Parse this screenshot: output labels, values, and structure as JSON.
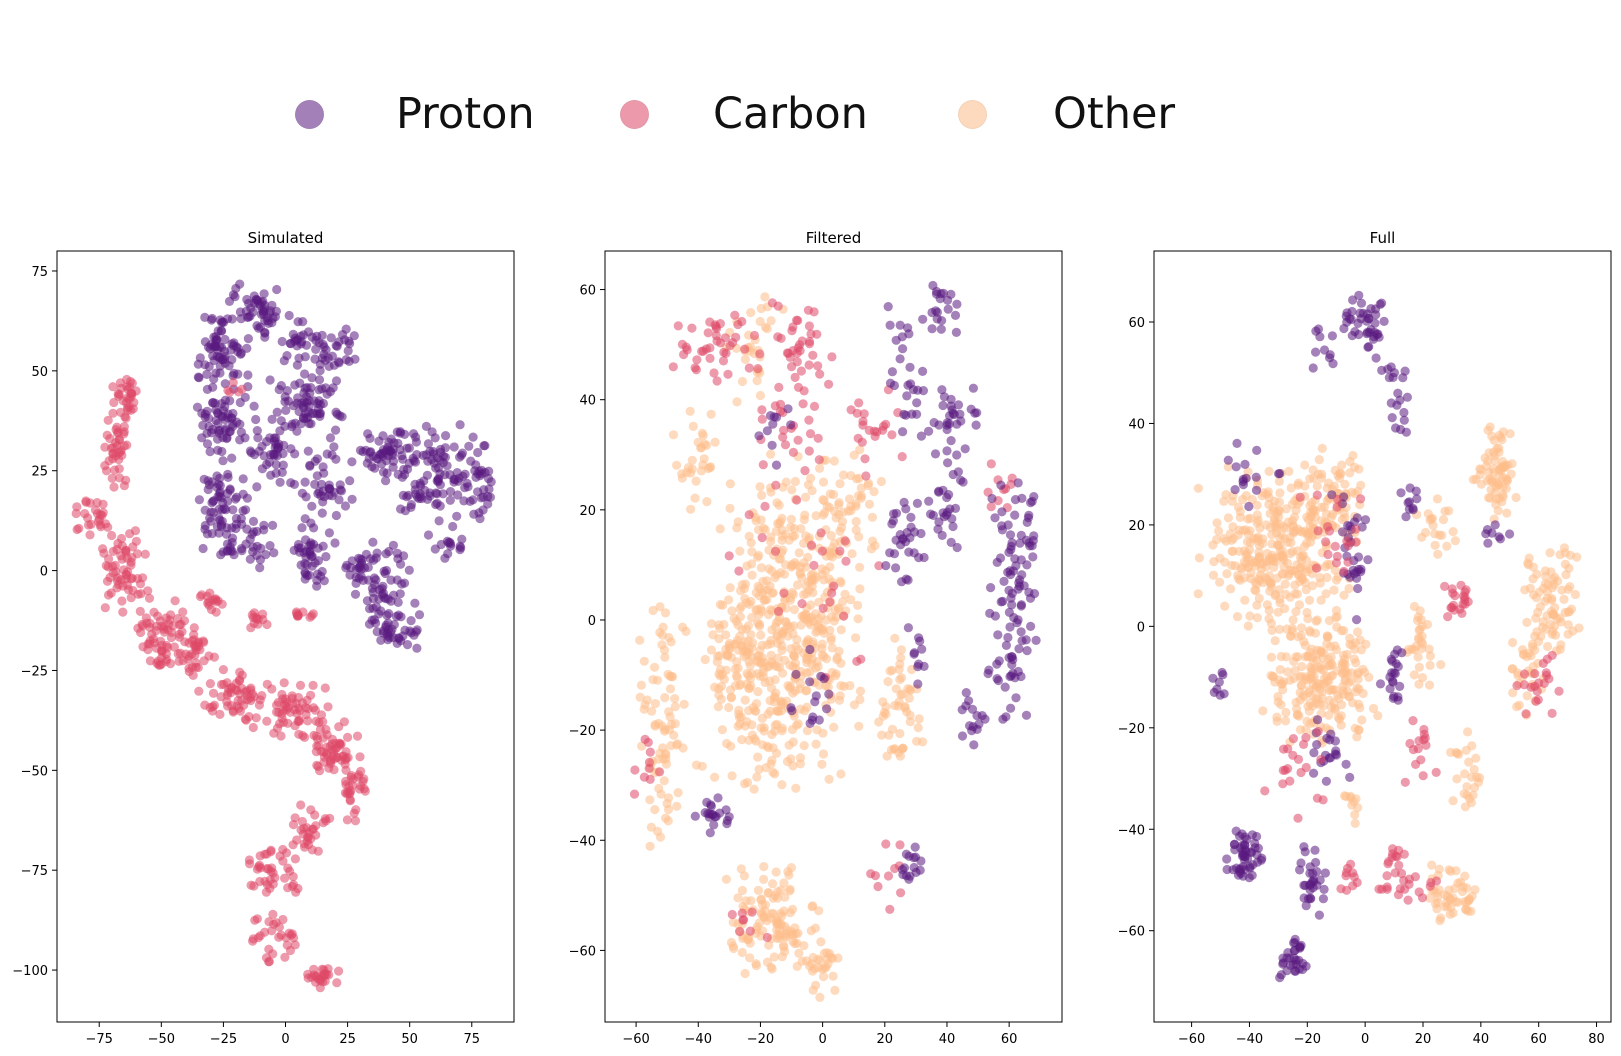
{
  "legend": {
    "items": [
      {
        "label": "Proton",
        "color": "#5a1a7f"
      },
      {
        "label": "Carbon",
        "color": "#de4968"
      },
      {
        "label": "Other",
        "color": "#fdbd8a"
      }
    ]
  },
  "chart_data": [
    {
      "type": "scatter",
      "title": "Simulated",
      "xlim": [
        -92,
        92
      ],
      "ylim": [
        -113,
        80
      ],
      "xticks": [
        -75,
        -50,
        -25,
        0,
        25,
        50,
        75
      ],
      "yticks": [
        75,
        50,
        25,
        0,
        -25,
        -50,
        -75,
        -100
      ],
      "series": [
        {
          "name": "Proton",
          "color": "#5a1a7f",
          "clusters": [
            [
              -12,
              65,
              8,
              5,
              50
            ],
            [
              -25,
              55,
              8,
              8,
              70
            ],
            [
              5,
              57,
              6,
              5,
              25
            ],
            [
              20,
              55,
              8,
              4,
              30
            ],
            [
              -25,
              38,
              10,
              8,
              60
            ],
            [
              -25,
              18,
              8,
              10,
              60
            ],
            [
              -15,
              8,
              10,
              6,
              40
            ],
            [
              10,
              40,
              12,
              10,
              80
            ],
            [
              -5,
              30,
              8,
              8,
              40
            ],
            [
              15,
              20,
              10,
              8,
              40
            ],
            [
              40,
              30,
              10,
              5,
              50
            ],
            [
              60,
              25,
              15,
              10,
              100
            ],
            [
              78,
              22,
              5,
              8,
              30
            ],
            [
              10,
              3,
              8,
              5,
              40
            ],
            [
              40,
              -5,
              10,
              10,
              60
            ],
            [
              45,
              -15,
              8,
              4,
              30
            ],
            [
              30,
              0,
              6,
              4,
              20
            ],
            [
              65,
              7,
              6,
              3,
              15
            ]
          ]
        },
        {
          "name": "Carbon",
          "color": "#de4968",
          "clusters": [
            [
              -64,
              43,
              4,
              4,
              30
            ],
            [
              -68,
              30,
              4,
              8,
              40
            ],
            [
              -78,
              13,
              6,
              4,
              25
            ],
            [
              -65,
              0,
              8,
              8,
              60
            ],
            [
              -50,
              -15,
              8,
              8,
              60
            ],
            [
              -38,
              -20,
              8,
              6,
              40
            ],
            [
              -20,
              -32,
              12,
              6,
              60
            ],
            [
              5,
              -35,
              10,
              6,
              60
            ],
            [
              20,
              -45,
              8,
              6,
              50
            ],
            [
              28,
              -55,
              5,
              6,
              30
            ],
            [
              10,
              -65,
              6,
              6,
              30
            ],
            [
              -5,
              -75,
              8,
              6,
              40
            ],
            [
              -5,
              -92,
              8,
              5,
              30
            ],
            [
              15,
              -102,
              6,
              2,
              25
            ],
            [
              -30,
              -8,
              4,
              4,
              15
            ],
            [
              -10,
              -12,
              4,
              2,
              12
            ],
            [
              8,
              -11,
              4,
              1,
              10
            ],
            [
              -20,
              45,
              3,
              2,
              5
            ]
          ]
        }
      ]
    },
    {
      "type": "scatter",
      "title": "Filtered",
      "xlim": [
        -70,
        77
      ],
      "ylim": [
        -73,
        67
      ],
      "xticks": [
        -60,
        -40,
        -20,
        0,
        20,
        40,
        60
      ],
      "yticks": [
        60,
        40,
        20,
        0,
        -20,
        -40,
        -60
      ],
      "series": [
        {
          "name": "Other",
          "color": "#fdbd8a",
          "clusters": [
            [
              -10,
              0,
              18,
              22,
              450
            ],
            [
              -52,
              -18,
              6,
              18,
              80
            ],
            [
              -40,
              30,
              6,
              8,
              30
            ],
            [
              -25,
              -10,
              12,
              15,
              120
            ],
            [
              25,
              -15,
              6,
              10,
              50
            ],
            [
              -15,
              -55,
              12,
              8,
              120
            ],
            [
              0,
              -62,
              5,
              5,
              25
            ],
            [
              -20,
              50,
              10,
              8,
              30
            ],
            [
              10,
              20,
              8,
              10,
              40
            ]
          ]
        },
        {
          "name": "Carbon",
          "color": "#de4968",
          "clusters": [
            [
              -35,
              50,
              10,
              6,
              40
            ],
            [
              -10,
              50,
              10,
              8,
              40
            ],
            [
              -10,
              35,
              10,
              6,
              20
            ],
            [
              15,
              35,
              8,
              6,
              20
            ],
            [
              -5,
              10,
              20,
              15,
              30
            ],
            [
              58,
              25,
              4,
              4,
              10
            ],
            [
              20,
              -45,
              5,
              6,
              10
            ],
            [
              -55,
              -25,
              5,
              5,
              10
            ],
            [
              -25,
              -55,
              6,
              4,
              8
            ]
          ]
        },
        {
          "name": "Proton",
          "color": "#5a1a7f",
          "clusters": [
            [
              38,
              57,
              6,
              4,
              20
            ],
            [
              25,
              52,
              3,
              4,
              8
            ],
            [
              28,
              40,
              5,
              6,
              20
            ],
            [
              42,
              35,
              6,
              6,
              30
            ],
            [
              25,
              15,
              6,
              6,
              30
            ],
            [
              40,
              20,
              5,
              6,
              25
            ],
            [
              62,
              10,
              6,
              12,
              60
            ],
            [
              60,
              -5,
              6,
              10,
              40
            ],
            [
              48,
              -18,
              4,
              4,
              15
            ],
            [
              30,
              -5,
              3,
              5,
              10
            ],
            [
              -35,
              -35,
              5,
              3,
              20
            ],
            [
              28,
              -45,
              3,
              3,
              15
            ],
            [
              -15,
              35,
              6,
              6,
              10
            ],
            [
              -5,
              -15,
              8,
              10,
              15
            ]
          ]
        }
      ]
    },
    {
      "type": "scatter",
      "title": "Full",
      "xlim": [
        -73,
        85
      ],
      "ylim": [
        -78,
        74
      ],
      "xticks": [
        -60,
        -40,
        -20,
        0,
        20,
        40,
        60,
        80
      ],
      "yticks": [
        60,
        40,
        20,
        0,
        -20,
        -40,
        -60
      ],
      "series": [
        {
          "name": "Other",
          "color": "#fdbd8a",
          "clusters": [
            [
              -30,
              15,
              20,
              13,
              320
            ],
            [
              -15,
              -10,
              15,
              10,
              220
            ],
            [
              -10,
              25,
              8,
              8,
              60
            ],
            [
              45,
              30,
              6,
              7,
              70
            ],
            [
              65,
              5,
              8,
              8,
              80
            ],
            [
              55,
              -10,
              5,
              6,
              30
            ],
            [
              30,
              -52,
              6,
              6,
              50
            ],
            [
              35,
              -30,
              4,
              8,
              25
            ],
            [
              20,
              -5,
              5,
              8,
              30
            ],
            [
              25,
              20,
              6,
              6,
              20
            ],
            [
              -5,
              -35,
              3,
              3,
              10
            ]
          ]
        },
        {
          "name": "Proton",
          "color": "#5a1a7f",
          "clusters": [
            [
              0,
              60,
              6,
              4,
              40
            ],
            [
              -15,
              55,
              4,
              4,
              10
            ],
            [
              10,
              50,
              5,
              4,
              10
            ],
            [
              12,
              42,
              3,
              3,
              10
            ],
            [
              -42,
              -45,
              5,
              4,
              50
            ],
            [
              -25,
              -65,
              4,
              4,
              30
            ],
            [
              -18,
              -50,
              4,
              6,
              30
            ],
            [
              -12,
              -25,
              6,
              5,
              20
            ],
            [
              10,
              -10,
              4,
              5,
              20
            ],
            [
              -40,
              30,
              8,
              5,
              15
            ],
            [
              -5,
              15,
              5,
              10,
              30
            ],
            [
              -50,
              -10,
              3,
              3,
              8
            ],
            [
              15,
              25,
              3,
              3,
              10
            ],
            [
              45,
              18,
              4,
              2,
              8
            ]
          ]
        },
        {
          "name": "Carbon",
          "color": "#de4968",
          "clusters": [
            [
              32,
              5,
              4,
              3,
              20
            ],
            [
              -25,
              -30,
              8,
              8,
              20
            ],
            [
              15,
              -50,
              8,
              3,
              20
            ],
            [
              20,
              -25,
              5,
              5,
              15
            ],
            [
              60,
              -10,
              6,
              6,
              20
            ],
            [
              -10,
              20,
              10,
              10,
              20
            ],
            [
              10,
              -45,
              3,
              3,
              10
            ],
            [
              -5,
              -50,
              3,
              3,
              10
            ]
          ]
        }
      ]
    }
  ]
}
